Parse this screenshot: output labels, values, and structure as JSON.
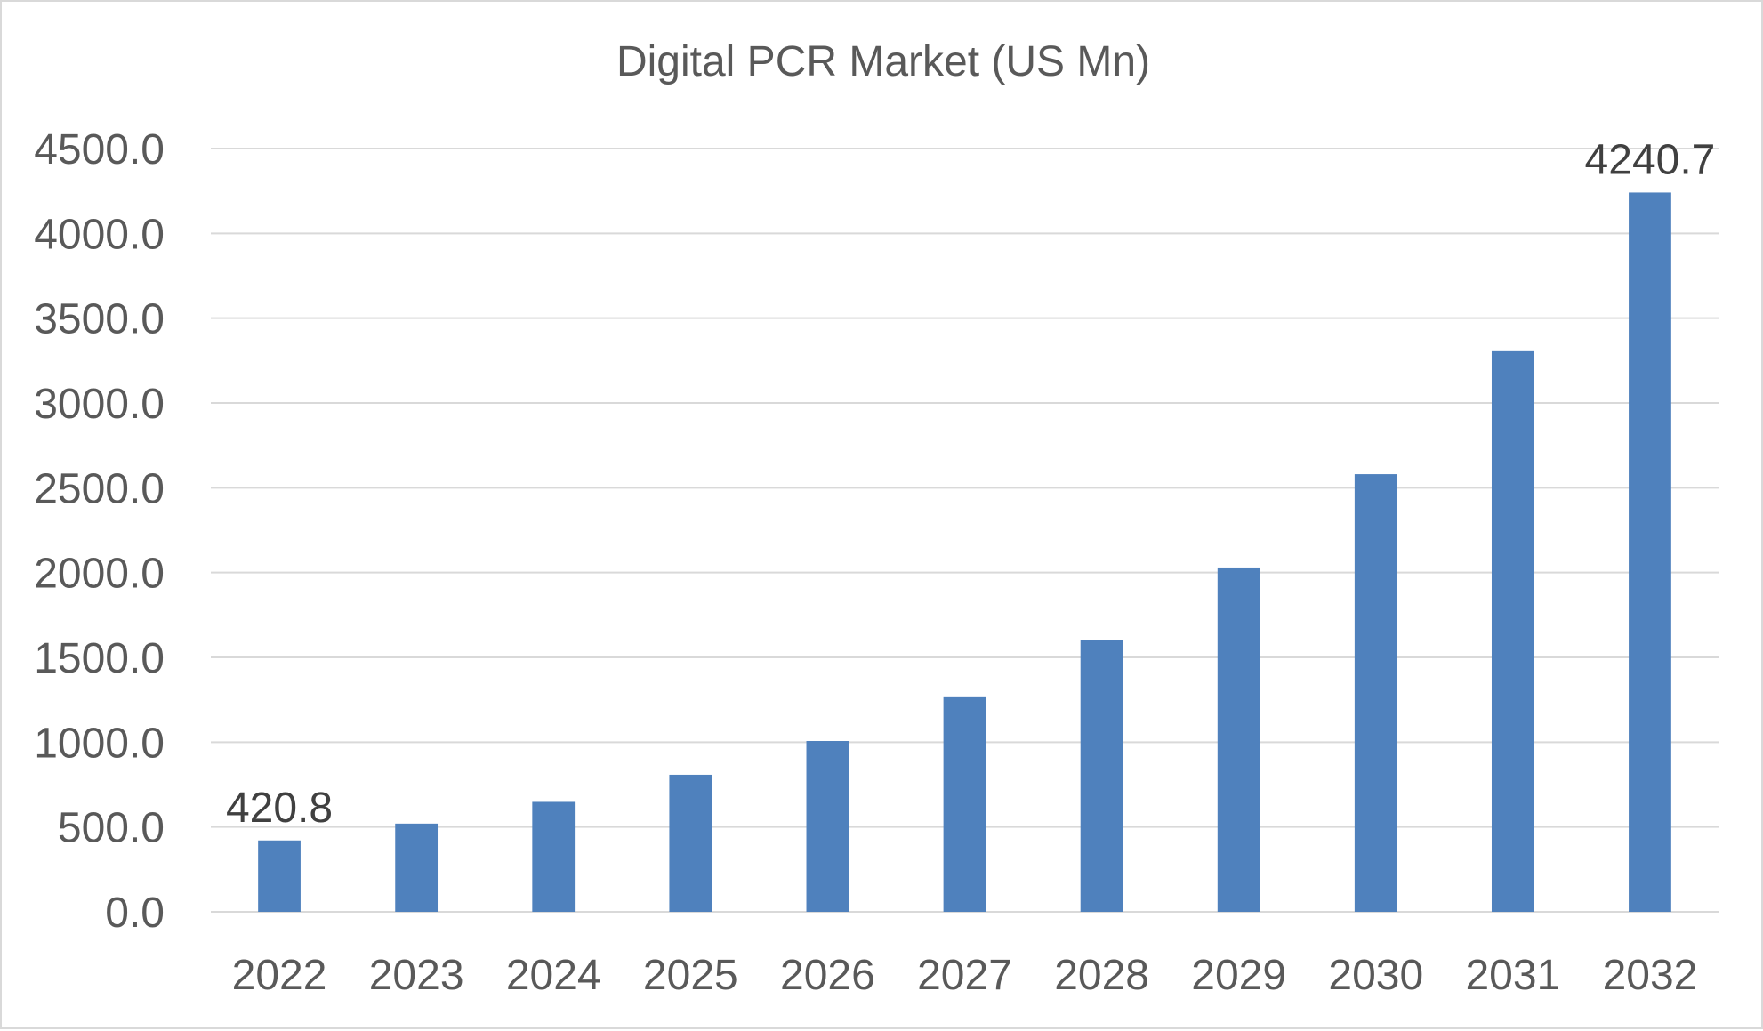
{
  "chart_data": {
    "type": "bar",
    "title": "Digital PCR Market (US Mn)",
    "xlabel": "",
    "ylabel": "",
    "categories": [
      "2022",
      "2023",
      "2024",
      "2025",
      "2026",
      "2027",
      "2028",
      "2029",
      "2030",
      "2031",
      "2032"
    ],
    "values": [
      420.8,
      520,
      648,
      808,
      1007,
      1270,
      1600,
      2030,
      2580,
      3305,
      4240.7
    ],
    "ylim": [
      0,
      4500
    ],
    "yticks": [
      "0.0",
      "500.0",
      "1000.0",
      "1500.0",
      "2000.0",
      "2500.0",
      "3000.0",
      "3500.0",
      "4000.0",
      "4500.0"
    ],
    "data_labels": [
      {
        "category": "2022",
        "text": "420.8"
      },
      {
        "category": "2032",
        "text": "4240.7"
      }
    ],
    "bar_color": "#4f81bd",
    "grid_color": "#d9d9d9",
    "grid": true,
    "legend": "none"
  }
}
